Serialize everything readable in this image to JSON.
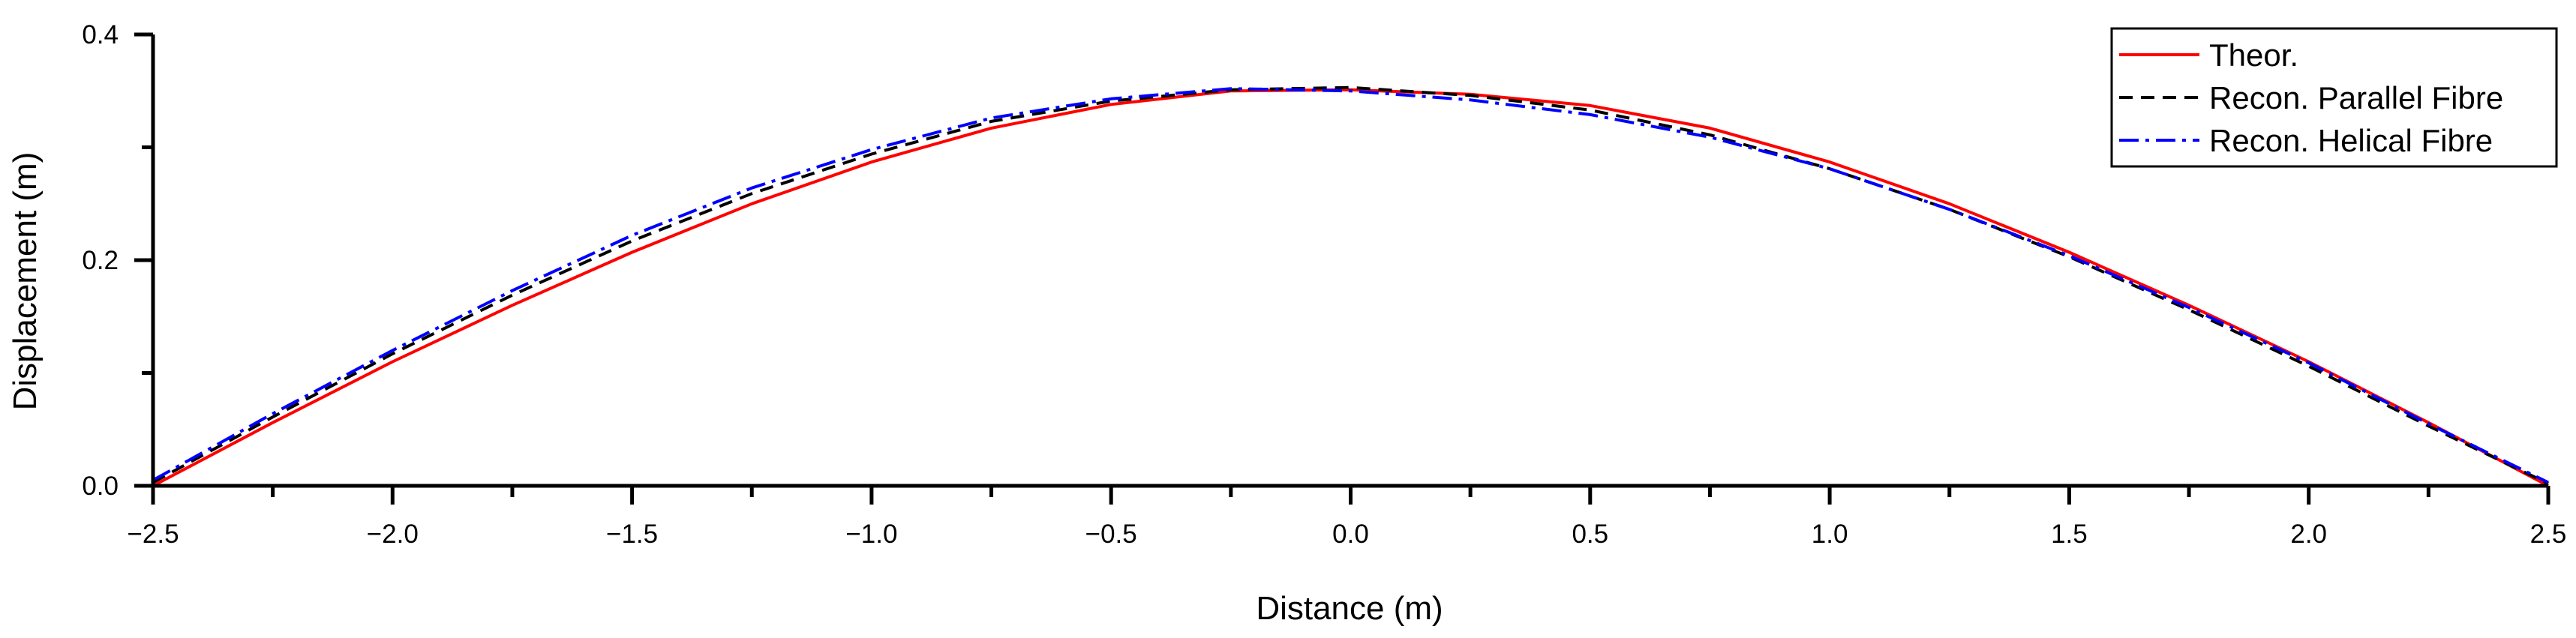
{
  "chart_data": {
    "type": "line",
    "xlabel": "Distance (m)",
    "ylabel": "Displacement (m)",
    "xlim": [
      -2.5,
      2.5
    ],
    "ylim": [
      0.0,
      0.4
    ],
    "x_ticks": [
      -2.5,
      -2.0,
      -1.5,
      -1.0,
      -0.5,
      0.0,
      0.5,
      1.0,
      1.5,
      2.0,
      2.5
    ],
    "x_tick_labels": [
      "−2.5",
      "−2.0",
      "−1.5",
      "−1.0",
      "−0.5",
      "0.0",
      "0.5",
      "1.0",
      "1.5",
      "2.0",
      "2.5"
    ],
    "y_ticks": [
      0.0,
      0.2,
      0.4
    ],
    "y_tick_labels": [
      "0.0",
      "0.2",
      "0.4"
    ],
    "x_minor_ticks": [
      -2.25,
      -1.75,
      -1.25,
      -0.75,
      -0.25,
      0.25,
      0.75,
      1.25,
      1.75,
      2.25
    ],
    "y_minor_ticks": [
      0.1,
      0.3
    ],
    "grid": false,
    "legend_position": "top-right",
    "x": [
      -2.5,
      -2.25,
      -2.0,
      -1.75,
      -1.5,
      -1.25,
      -1.0,
      -0.75,
      -0.5,
      -0.25,
      0.0,
      0.25,
      0.5,
      0.75,
      1.0,
      1.25,
      1.5,
      1.75,
      2.0,
      2.25,
      2.5
    ],
    "series": [
      {
        "name": "Theor.",
        "color": "#ff0000",
        "dash": "solid",
        "values": [
          0.0,
          0.056,
          0.11,
          0.16,
          0.207,
          0.25,
          0.287,
          0.317,
          0.338,
          0.35,
          0.351,
          0.347,
          0.337,
          0.317,
          0.287,
          0.25,
          0.207,
          0.16,
          0.11,
          0.056,
          0.0
        ]
      },
      {
        "name": "Recon. Parallel Fibre",
        "color": "#000000",
        "dash": "dashed",
        "values": [
          0.003,
          0.061,
          0.117,
          0.169,
          0.217,
          0.259,
          0.294,
          0.323,
          0.341,
          0.351,
          0.353,
          0.346,
          0.333,
          0.311,
          0.281,
          0.245,
          0.203,
          0.156,
          0.106,
          0.053,
          0.002
        ]
      },
      {
        "name": "Recon. Helical Fibre",
        "color": "#0000ff",
        "dash": "dashdot",
        "values": [
          0.005,
          0.064,
          0.12,
          0.173,
          0.222,
          0.264,
          0.298,
          0.326,
          0.343,
          0.352,
          0.35,
          0.342,
          0.329,
          0.309,
          0.281,
          0.245,
          0.204,
          0.158,
          0.109,
          0.055,
          0.003
        ]
      }
    ]
  }
}
